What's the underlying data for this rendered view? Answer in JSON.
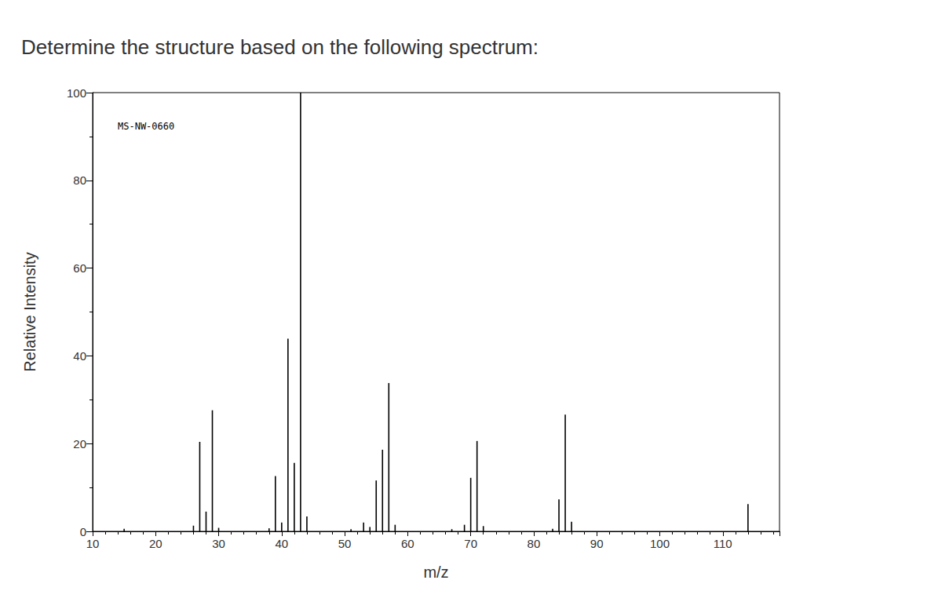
{
  "chart_data": {
    "type": "bar",
    "title": "Determine the structure based on the following spectrum:",
    "annotation": "MS-NW-0660",
    "xlabel": "m/z",
    "ylabel": "Relative Intensity",
    "x": [
      15,
      26,
      27,
      28,
      29,
      30,
      38,
      39,
      40,
      41,
      42,
      43,
      44,
      51,
      53,
      54,
      55,
      56,
      57,
      58,
      67,
      69,
      70,
      71,
      72,
      83,
      84,
      85,
      86,
      114
    ],
    "values": [
      0.6,
      1.3,
      20.4,
      4.5,
      27.6,
      0.8,
      0.7,
      12.6,
      2.0,
      43.9,
      15.6,
      100,
      3.4,
      0.5,
      2.0,
      1.0,
      11.6,
      18.6,
      33.8,
      1.5,
      0.5,
      1.5,
      12.2,
      20.6,
      1.2,
      0.6,
      7.3,
      26.6,
      2.2,
      6.2
    ],
    "color": "#000000",
    "xlim": [
      10,
      119
    ],
    "xticks": [
      10,
      20,
      30,
      40,
      50,
      60,
      70,
      80,
      90,
      100,
      110
    ],
    "ylim": [
      0,
      100
    ],
    "yticks": [
      0,
      20,
      40,
      60,
      80,
      100
    ],
    "grid": false
  }
}
